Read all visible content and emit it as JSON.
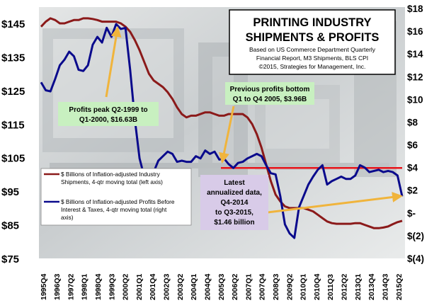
{
  "chart_data": {
    "type": "line",
    "title_line1": "PRINTING INDUSTRY",
    "title_line2": "SHIPMENTS & PROFITS",
    "subtitle_lines": [
      "Based on US Commerce Department Quarterly",
      "Financial Report, M3 Shipments, BLS CPI",
      "©2015, Strategies for Management, Inc."
    ],
    "x_tick_labels": [
      "1995Q4",
      "1996Q3",
      "1997Q2",
      "1998Q1",
      "1998Q4",
      "1999Q3",
      "2000Q2",
      "2001Q1",
      "2001Q4",
      "2002Q3",
      "2003Q2",
      "2004Q1",
      "2004Q4",
      "2005Q3",
      "2006Q2",
      "2007Q1",
      "2007Q4",
      "2008Q3",
      "2009Q2",
      "2010Q1",
      "2010Q4",
      "2011Q3",
      "2012Q2",
      "2013Q1",
      "2013Q4",
      "2014Q3",
      "2015Q2"
    ],
    "y_left_ticks": [
      "$145",
      "$135",
      "$125",
      "$115",
      "$105",
      "$95",
      "$85",
      "$75"
    ],
    "y_right_ticks": [
      "$18",
      "$16",
      "$14",
      "$12",
      "$10",
      "$8",
      "$6",
      "$4",
      "$2",
      "$-",
      "$(2)",
      "$(4)"
    ],
    "ylim_left": [
      75,
      150
    ],
    "ylim_right": [
      -4,
      18
    ],
    "series": [
      {
        "name": "$ Billions of Inflation-adjusted Industry Shipments, 4-qtr moving total (left axis)",
        "axis": "left",
        "color": "#8b1a1a",
        "values": [
          144,
          145.5,
          146.5,
          146,
          145,
          145,
          145.5,
          146,
          146,
          146.5,
          146.5,
          146.3,
          146,
          145.5,
          145.5,
          145.5,
          145.5,
          145,
          144,
          142.5,
          140,
          137,
          133.5,
          130,
          128,
          127,
          126,
          124.5,
          122.5,
          120,
          118,
          117,
          117.5,
          117.5,
          118,
          118.5,
          118.5,
          118,
          117.5,
          117.5,
          118,
          118,
          118,
          118,
          117,
          115,
          112,
          108,
          103,
          98,
          94,
          92,
          90.5,
          90,
          90,
          90,
          90,
          89.5,
          89,
          88,
          87,
          86,
          85.5,
          85.3,
          85.3,
          85.3,
          85.3,
          85.5,
          85.5,
          85,
          84.5,
          84,
          84,
          84.2,
          84.5,
          85.2,
          85.8,
          86.2
        ]
      },
      {
        "name": "$ Billions of Inflation-adjusted Profits Before Interest & Taxes, 4-qtr moving total (right axis)",
        "axis": "right",
        "color": "#0a0a8c",
        "values": [
          11.5,
          10.8,
          10.7,
          11.8,
          13,
          13.5,
          14.2,
          13.8,
          12.6,
          12.5,
          13,
          14.8,
          15.5,
          15,
          16.3,
          15.5,
          16.63,
          16.2,
          16.3,
          12.6,
          8.2,
          4.8,
          3.2,
          3,
          3.6,
          4.6,
          5,
          5.4,
          5.2,
          4.5,
          4.6,
          4.5,
          4.5,
          5,
          4.8,
          5.5,
          5.2,
          5.4,
          4.7,
          4.8,
          4.3,
          3.96,
          4.4,
          4.5,
          4.8,
          5,
          5.2,
          5,
          4.2,
          3.5,
          3.4,
          1.5,
          -1,
          -1.8,
          -2.2,
          0.5,
          1.5,
          2.5,
          3.2,
          3.8,
          4.2,
          2.5,
          2.8,
          3,
          3.2,
          3,
          3,
          3.3,
          4.2,
          4,
          3.6,
          3.7,
          3.8,
          3.6,
          3.7,
          3.6,
          3.3,
          1.46
        ]
      }
    ],
    "reference_line": {
      "axis": "right",
      "value": 3.96,
      "color": "#e8141a"
    },
    "legend_entries": [
      {
        "series": 0,
        "text_lines": [
          "$ Billions of Inflation-adjusted Industry",
          "Shipments, 4-qtr moving total (left axis)"
        ]
      },
      {
        "series": 1,
        "text_lines": [
          "$ Billions of Inflation-adjusted Profits Before",
          "Interest & Taxes, 4-qtr moving total (right",
          "axis)"
        ]
      }
    ],
    "annotations": [
      {
        "text_lines": [
          "Profits peak Q2-1999 to",
          "Q1-2000, $16.63B"
        ],
        "box_color": "#c8f0c0"
      },
      {
        "text_lines": [
          "Previous profits bottom",
          "Q1 to Q4 2005, $3.96B"
        ],
        "box_color": "#c8f0c0"
      },
      {
        "text_lines": [
          "Latest",
          "annualized data,",
          "Q4-2014",
          "to Q3-2015,",
          "$1.46 billion"
        ],
        "box_color": "#d8cbe8"
      }
    ],
    "arrow_color": "#f0b43c",
    "legend_position": "middle-left",
    "grid": false
  }
}
